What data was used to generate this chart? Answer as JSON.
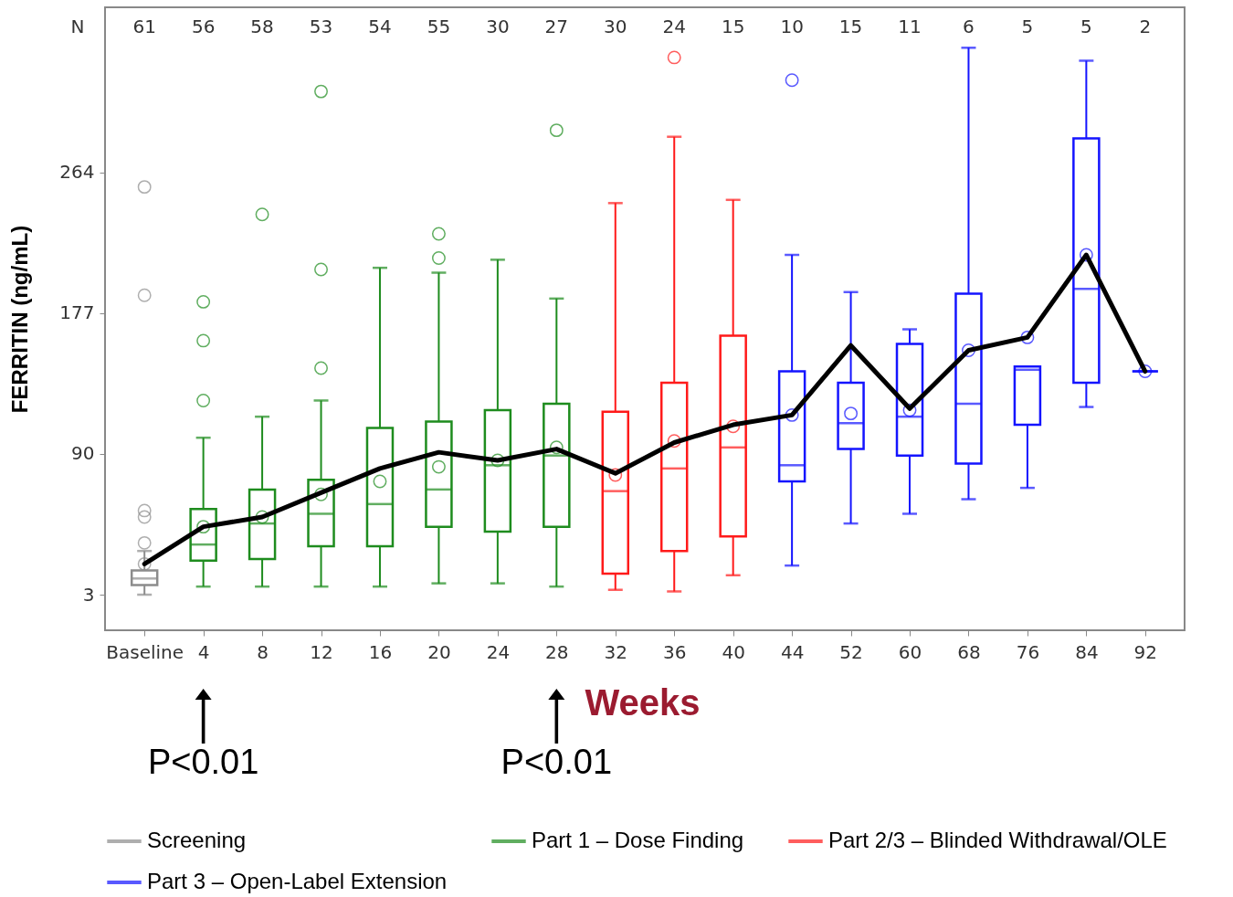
{
  "chart_data": {
    "type": "box",
    "xlabel": "Weeks",
    "ylabel": "FERRITIN (ng/mL)",
    "categories": [
      "Baseline",
      "4",
      "8",
      "12",
      "16",
      "20",
      "24",
      "28",
      "32",
      "36",
      "40",
      "44",
      "52",
      "60",
      "68",
      "76",
      "84",
      "92"
    ],
    "ylim": [
      -19,
      366
    ],
    "yticks": [
      3,
      90,
      177,
      264
    ],
    "grid": false,
    "legend": "bottom",
    "series": [
      {
        "name": "Screening",
        "color": "#8c8c8c",
        "type": "box",
        "boxes": [
          {
            "low": 3,
            "q1": 9,
            "median": 13,
            "q3": 18,
            "high": 30,
            "mean": 22,
            "outliers": [
              255,
              188,
              55,
              51,
              35
            ]
          },
          null,
          null,
          null,
          null,
          null,
          null,
          null,
          null,
          null,
          null,
          null,
          null,
          null,
          null,
          null,
          null,
          null
        ]
      },
      {
        "name": "Part 1 – Dose Finding",
        "color": "#1e8c1e",
        "type": "box",
        "boxes": [
          null,
          {
            "low": 8,
            "q1": 24,
            "median": 34,
            "q3": 56,
            "high": 100,
            "mean": 45,
            "outliers": [
              184,
              160,
              123
            ]
          },
          {
            "low": 8,
            "q1": 25,
            "median": 47,
            "q3": 68,
            "high": 113,
            "mean": 51,
            "outliers": [
              238
            ]
          },
          {
            "low": 8,
            "q1": 33,
            "median": 53,
            "q3": 74,
            "high": 123,
            "mean": 65,
            "outliers": [
              314,
              204,
              143
            ]
          },
          {
            "low": 8,
            "q1": 33,
            "median": 59,
            "q3": 106,
            "high": 205,
            "mean": 73
          },
          {
            "low": 10,
            "q1": 45,
            "median": 68,
            "q3": 110,
            "high": 202,
            "mean": 82,
            "outliers": [
              226,
              211
            ]
          },
          {
            "low": 10,
            "q1": 42,
            "median": 83,
            "q3": 117,
            "high": 210,
            "mean": 86
          },
          {
            "low": 8,
            "q1": 45,
            "median": 89,
            "q3": 121,
            "high": 186,
            "mean": 94,
            "outliers": [
              290
            ]
          },
          null,
          null,
          null,
          null,
          null,
          null,
          null,
          null,
          null,
          null
        ]
      },
      {
        "name": "Part 2/3 – Blinded Withdrawal/OLE",
        "color": "#ff1a1a",
        "type": "box",
        "boxes": [
          null,
          null,
          null,
          null,
          null,
          null,
          null,
          null,
          {
            "low": 6,
            "q1": 16,
            "median": 67,
            "q3": 116,
            "high": 245,
            "mean": 77
          },
          {
            "low": 5,
            "q1": 30,
            "median": 81,
            "q3": 134,
            "high": 286,
            "mean": 98,
            "outliers": [
              335
            ]
          },
          {
            "low": 15,
            "q1": 39,
            "median": 94,
            "q3": 163,
            "high": 247,
            "mean": 107
          },
          null,
          null,
          null,
          null,
          null,
          null,
          null
        ]
      },
      {
        "name": "Part 3 – Open-Label Extension",
        "color": "#1414ff",
        "type": "box",
        "boxes": [
          null,
          null,
          null,
          null,
          null,
          null,
          null,
          null,
          null,
          null,
          null,
          {
            "low": 21,
            "q1": 73,
            "median": 83,
            "q3": 141,
            "high": 213,
            "mean": 114,
            "outliers": [
              321
            ]
          },
          {
            "low": 47,
            "q1": 93,
            "median": 109,
            "q3": 134,
            "high": 190,
            "mean": 115
          },
          {
            "low": 53,
            "q1": 89,
            "median": 113,
            "q3": 158,
            "high": 167,
            "mean": 117
          },
          {
            "low": 62,
            "q1": 84,
            "median": 121,
            "q3": 189,
            "high": 341,
            "mean": 154
          },
          {
            "low": 69,
            "q1": 108,
            "median": 142,
            "q3": 144,
            "high": 144,
            "mean": 162
          },
          {
            "low": 119,
            "q1": 134,
            "median": 192,
            "q3": 285,
            "high": 333,
            "mean": 213
          },
          {
            "low": 141,
            "q1": 141,
            "median": 141,
            "q3": 141,
            "high": 141,
            "mean": 141
          }
        ]
      },
      {
        "type": "line",
        "color": "#000000",
        "values": [
          22,
          45,
          51,
          66,
          81,
          91,
          86,
          93,
          78,
          97,
          108,
          114,
          157,
          118,
          154,
          162,
          213,
          141
        ]
      }
    ],
    "annotations": [
      "N",
      "61",
      "56",
      "58",
      "53",
      "54",
      "55",
      "30",
      "27",
      "30",
      "24",
      "15",
      "10",
      "15",
      "11",
      "6",
      "5",
      "5",
      "2",
      "P<0.01",
      "P<0.01"
    ]
  }
}
